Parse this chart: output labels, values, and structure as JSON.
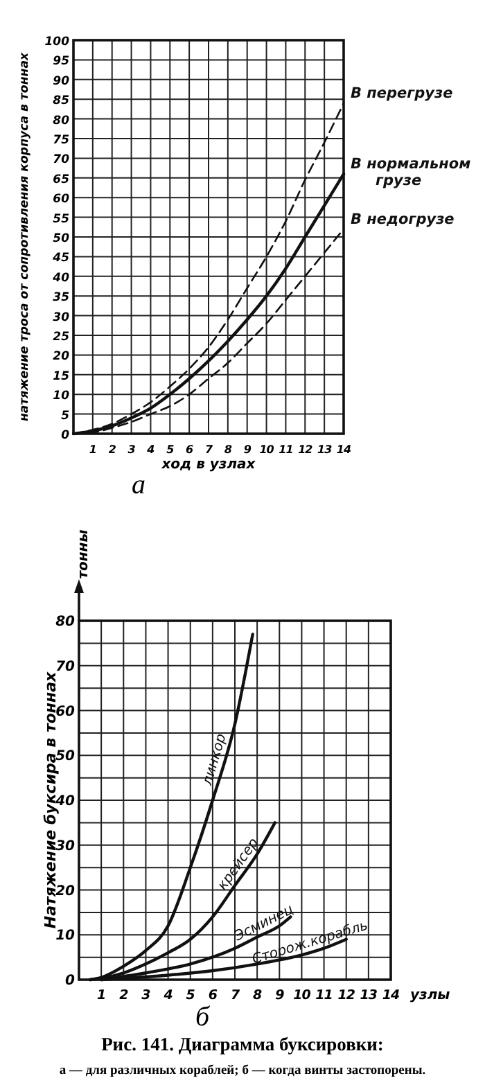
{
  "chart_data": [
    {
      "type": "line",
      "subtitle": "а",
      "xlabel": "ход в узлах",
      "ylabel": "натяжение троса от сопротивления корпуса в тоннах",
      "xlim": [
        0,
        14
      ],
      "ylim": [
        0,
        100
      ],
      "xticks": [
        1,
        2,
        3,
        4,
        5,
        6,
        7,
        8,
        9,
        10,
        11,
        12,
        13,
        14
      ],
      "yticks": [
        0,
        5,
        10,
        15,
        20,
        25,
        30,
        35,
        40,
        45,
        50,
        55,
        60,
        65,
        70,
        75,
        80,
        85,
        90,
        95,
        100
      ],
      "grid": true,
      "legend": false,
      "marker": "none",
      "series": [
        {
          "name": "В перегрузе",
          "color": "#111111",
          "line_style": "dashed",
          "x": [
            0,
            1,
            2,
            3,
            4,
            5,
            6,
            7,
            8,
            9,
            10,
            11,
            12,
            13,
            14
          ],
          "values": [
            0,
            1,
            2.5,
            5,
            8,
            12,
            16.5,
            22,
            29,
            37,
            45,
            54,
            64.5,
            74,
            84
          ]
        },
        {
          "name": "В нормальном грузе",
          "color": "#111111",
          "line_style": "solid",
          "x": [
            0,
            1,
            2,
            3,
            4,
            5,
            6,
            7,
            8,
            9,
            10,
            11,
            12,
            13,
            14
          ],
          "values": [
            0,
            0.7,
            2,
            4,
            6.5,
            10,
            14,
            18.5,
            23.5,
            29,
            35,
            42,
            50,
            58,
            66
          ]
        },
        {
          "name": "В недогрузе",
          "color": "#111111",
          "line_style": "dashed",
          "x": [
            0,
            1,
            2,
            3,
            4,
            5,
            6,
            7,
            8,
            9,
            10,
            11,
            12,
            13,
            14
          ],
          "values": [
            0,
            0.3,
            1.5,
            3,
            5,
            7,
            10,
            14,
            18,
            23,
            28,
            34,
            40,
            46,
            52
          ]
        }
      ]
    },
    {
      "type": "line",
      "subtitle": "б",
      "xlabel": "узлы",
      "ylabel": "Натяжение буксира в тоннах",
      "annotations": [
        "тонны",
        "Рис. 141. Диаграмма буксировки:",
        "а — для различных кораблей; б — когда винты застопорены."
      ],
      "xlim": [
        0,
        14
      ],
      "ylim": [
        0,
        80
      ],
      "xticks": [
        1,
        2,
        3,
        4,
        5,
        6,
        7,
        8,
        9,
        10,
        11,
        12,
        13,
        14
      ],
      "yticks": [
        0,
        {
          "value": 5,
          "label": null
        },
        10,
        {
          "value": 15,
          "label": null
        },
        20,
        {
          "value": 25,
          "label": null
        },
        30,
        {
          "value": 35,
          "label": null
        },
        40,
        {
          "value": 45,
          "label": null
        },
        50,
        {
          "value": 55,
          "label": null
        },
        60,
        {
          "value": 65,
          "label": null
        },
        70,
        {
          "value": 75,
          "label": null
        },
        80
      ],
      "grid": true,
      "legend": false,
      "marker": "none",
      "series": [
        {
          "name": "линкор",
          "color": "#111111",
          "line_style": "solid",
          "x": [
            0.5,
            1,
            2,
            3,
            4,
            5,
            6,
            7,
            7.8
          ],
          "values": [
            0,
            0.5,
            3,
            6.5,
            12,
            25,
            40,
            57,
            77
          ]
        },
        {
          "name": "крейсер",
          "color": "#111111",
          "line_style": "solid",
          "x": [
            0.5,
            1,
            2,
            3,
            4,
            5,
            6,
            7,
            8,
            8.8
          ],
          "values": [
            0,
            0.3,
            1.5,
            3.5,
            6,
            9,
            14,
            21,
            28,
            35
          ]
        },
        {
          "name": "Эсминец",
          "color": "#111111",
          "line_style": "solid",
          "x": [
            1,
            3,
            5,
            7,
            8,
            9,
            9.5
          ],
          "values": [
            0,
            1.5,
            3.5,
            7,
            9.5,
            12,
            14
          ]
        },
        {
          "name": "Сторож.корабль",
          "color": "#111111",
          "line_style": "solid",
          "x": [
            1,
            4,
            6,
            8,
            10,
            11,
            12
          ],
          "values": [
            0,
            1,
            2,
            3.5,
            5.5,
            7,
            9
          ]
        }
      ]
    }
  ]
}
